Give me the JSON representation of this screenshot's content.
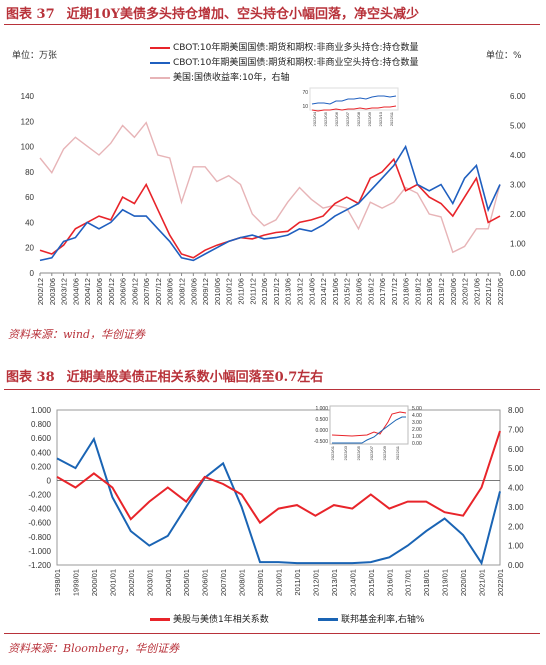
{
  "fig37": {
    "title_num": "图表 37",
    "title_text": "近期10Y美债多头持仓增加、空头持仓小幅回落，净空头减少",
    "unit_left": "单位：万张",
    "unit_right": "单位：%",
    "source": "资料来源：wind，华创证券",
    "legend": [
      {
        "label": "CBOT:10年期美国国债:期货和期权:非商业多头持仓:持仓数量",
        "color": "#e8242a"
      },
      {
        "label": "CBOT:10年期美国国债:期货和期权:非商业空头持仓:持仓数量",
        "color": "#1f5fbf"
      },
      {
        "label": "美国:国债收益率:10年，右轴",
        "color": "#e7b4b7"
      }
    ],
    "inset_ticks": [
      "2022/04",
      "2022/05",
      "2022/06",
      "2022/07",
      "2022/08",
      "2022/09",
      "2022/10",
      "2022/11"
    ],
    "inset_y": [
      "70",
      "10"
    ]
  },
  "fig38": {
    "title_num": "图表 38",
    "title_text": "近期美股美债正相关系数小幅回落至0.7左右",
    "source": "资料来源：Bloomberg，华创证券",
    "legend": [
      {
        "label": "美股与美债1年相关系数",
        "color": "#e8242a"
      },
      {
        "label": "联邦基金利率,右轴%",
        "color": "#1a64b4"
      }
    ],
    "inset_y_left": [
      "1.000",
      "0.500",
      "0.000",
      "-0.500"
    ],
    "inset_y_right": [
      "5.00",
      "4.00",
      "3.00",
      "2.00",
      "1.00",
      "0.00"
    ],
    "inset_ticks": [
      "2022/01",
      "2022/03",
      "2022/05",
      "2022/07",
      "2022/09",
      "2022/11"
    ]
  },
  "chart_data": [
    {
      "type": "line",
      "x": [
        "2002/12",
        "2003/06",
        "2003/12",
        "2004/06",
        "2004/12",
        "2005/06",
        "2005/12",
        "2006/06",
        "2006/12",
        "2007/06",
        "2007/12",
        "2008/06",
        "2008/12",
        "2009/06",
        "2009/12",
        "2010/06",
        "2010/12",
        "2011/06",
        "2011/12",
        "2012/06",
        "2012/12",
        "2013/06",
        "2013/12",
        "2014/06",
        "2014/12",
        "2015/06",
        "2015/12",
        "2016/06",
        "2016/12",
        "2017/06",
        "2017/12",
        "2018/06",
        "2018/12",
        "2019/06",
        "2019/12",
        "2020/06",
        "2020/12",
        "2021/06",
        "2021/12",
        "2022/06"
      ],
      "ylim": [
        0,
        140
      ],
      "yticks": [
        0,
        20,
        40,
        60,
        80,
        100,
        120,
        140
      ],
      "y2lim": [
        0,
        6
      ],
      "y2ticks": [
        "0.00",
        "1.00",
        "2.00",
        "3.00",
        "4.00",
        "5.00",
        "6.00"
      ],
      "series": [
        {
          "name": "CBOT:10年期美国国债:期货和期权:非商业多头持仓:持仓数量",
          "axis": "left",
          "values": [
            18,
            15,
            22,
            35,
            40,
            45,
            42,
            60,
            55,
            70,
            50,
            30,
            15,
            12,
            18,
            22,
            25,
            28,
            27,
            30,
            32,
            33,
            40,
            42,
            45,
            55,
            60,
            55,
            75,
            80,
            90,
            65,
            70,
            60,
            55,
            45,
            60,
            75,
            40,
            45
          ]
        },
        {
          "name": "CBOT:10年期美国国债:期货和期权:非商业空头持仓:持仓数量",
          "axis": "left",
          "values": [
            10,
            12,
            25,
            28,
            40,
            35,
            40,
            50,
            45,
            45,
            35,
            25,
            12,
            10,
            15,
            20,
            25,
            28,
            30,
            27,
            28,
            30,
            35,
            33,
            38,
            45,
            50,
            55,
            65,
            75,
            85,
            100,
            70,
            65,
            70,
            55,
            75,
            85,
            50,
            70
          ]
        },
        {
          "name": "美国:国债收益率:10年，右轴",
          "axis": "right",
          "values": [
            3.9,
            3.4,
            4.2,
            4.6,
            4.3,
            4.0,
            4.4,
            5.0,
            4.6,
            5.1,
            4.0,
            3.9,
            2.4,
            3.6,
            3.6,
            3.1,
            3.3,
            3.0,
            2.0,
            1.6,
            1.8,
            2.4,
            2.9,
            2.5,
            2.2,
            2.3,
            2.2,
            1.5,
            2.4,
            2.2,
            2.4,
            2.9,
            2.7,
            2.0,
            1.9,
            0.7,
            0.9,
            1.5,
            1.5,
            3.0
          ]
        }
      ]
    },
    {
      "type": "line",
      "x": [
        "1998/01",
        "1999/01",
        "2000/01",
        "2001/01",
        "2002/01",
        "2003/01",
        "2004/01",
        "2005/01",
        "2006/01",
        "2007/01",
        "2008/01",
        "2009/01",
        "2010/01",
        "2011/01",
        "2012/01",
        "2013/01",
        "2014/01",
        "2015/01",
        "2016/01",
        "2017/01",
        "2018/01",
        "2019/01",
        "2020/01",
        "2021/01",
        "2022/01"
      ],
      "ylim": [
        -1.2,
        1.0
      ],
      "yticks": [
        "-1.200",
        "-1.000",
        "-0.800",
        "-0.600",
        "-0.400",
        "-0.200",
        "0",
        "0.200",
        "0.400",
        "0.600",
        "0.800",
        "1.000"
      ],
      "y2lim": [
        0,
        8
      ],
      "y2ticks": [
        "0.00",
        "1.00",
        "2.00",
        "3.00",
        "4.00",
        "5.00",
        "6.00",
        "7.00",
        "8.00"
      ],
      "series": [
        {
          "name": "美股与美债1年相关系数",
          "axis": "left",
          "values": [
            0.05,
            -0.1,
            0.1,
            -0.1,
            -0.55,
            -0.3,
            -0.1,
            -0.3,
            0.05,
            -0.05,
            -0.2,
            -0.6,
            -0.4,
            -0.35,
            -0.5,
            -0.35,
            -0.4,
            -0.2,
            -0.4,
            -0.3,
            -0.3,
            -0.45,
            -0.5,
            -0.1,
            0.7
          ]
        },
        {
          "name": "联邦基金利率,右轴%",
          "axis": "right",
          "values": [
            5.5,
            5.0,
            6.5,
            3.5,
            1.75,
            1.0,
            1.5,
            3.0,
            4.5,
            5.25,
            3.0,
            0.15,
            0.15,
            0.1,
            0.1,
            0.1,
            0.1,
            0.15,
            0.4,
            1.0,
            1.75,
            2.4,
            1.55,
            0.1,
            3.8
          ]
        }
      ]
    }
  ]
}
